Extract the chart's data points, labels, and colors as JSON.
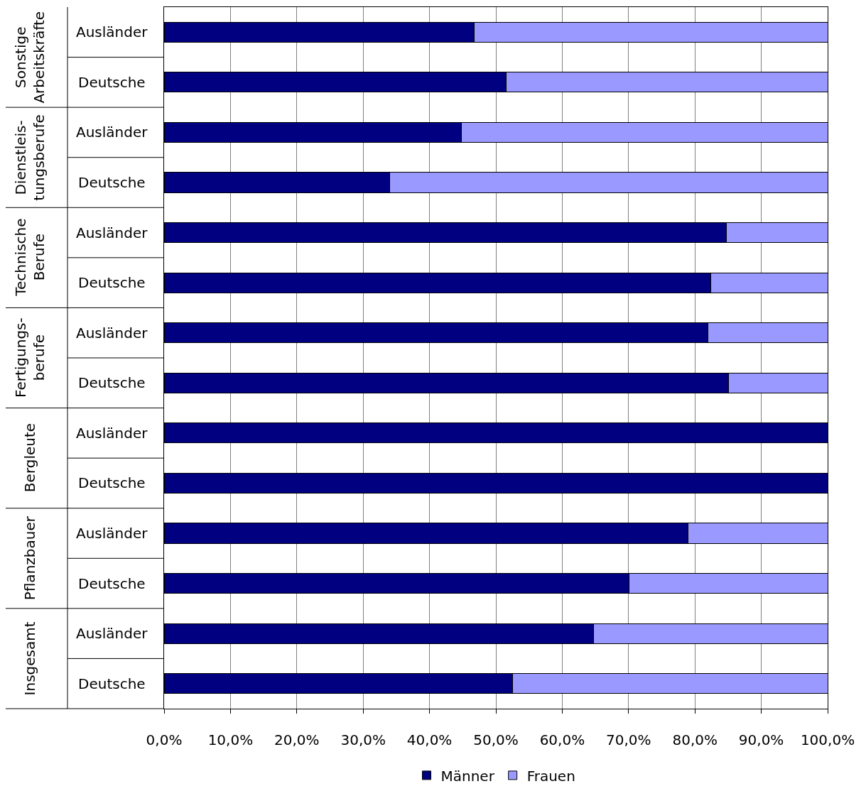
{
  "chart_data": {
    "type": "bar",
    "orientation": "horizontal",
    "stacked": true,
    "categories": [
      "Ausländer",
      "Deutsche",
      "Ausländer",
      "Deutsche",
      "Ausländer",
      "Deutsche",
      "Ausländer",
      "Deutsche",
      "Ausländer",
      "Deutsche",
      "Ausländer",
      "Deutsche",
      "Ausländer",
      "Deutsche"
    ],
    "series": [
      {
        "name": "Männer",
        "color": "#000080",
        "values": [
          46.7,
          51.5,
          44.8,
          34.0,
          84.7,
          82.4,
          82.0,
          85.1,
          100,
          100,
          79.0,
          70.1,
          64.7,
          52.5
        ]
      },
      {
        "name": "Frauen",
        "color": "#9999ff",
        "values": [
          53.3,
          48.5,
          55.2,
          66.0,
          15.3,
          17.6,
          18.0,
          14.9,
          null,
          null,
          21.0,
          29.9,
          35.3,
          47.5
        ]
      }
    ],
    "annotations": [
      "Sonstige\nArbeitskräfte",
      "Dienstleis-\ntungsberufe",
      "Technische\nBerufe",
      "Fertigungs-\nberufe",
      "Bergleute",
      "Pflanzbauer",
      "Insgesamt"
    ],
    "xlim": [
      0,
      100
    ],
    "xticks": [
      {
        "value": 0,
        "label": "0,0%"
      },
      {
        "value": 10,
        "label": "10,0%"
      },
      {
        "value": 20,
        "label": "20,0%"
      },
      {
        "value": 30,
        "label": "30,0%"
      },
      {
        "value": 40,
        "label": "40,0%"
      },
      {
        "value": 50,
        "label": "50,0%"
      },
      {
        "value": 60,
        "label": "60,0%"
      },
      {
        "value": 70,
        "label": "70,0%"
      },
      {
        "value": 80,
        "label": "80,0%"
      },
      {
        "value": 90,
        "label": "90,0%"
      },
      {
        "value": 100,
        "label": "100,0%"
      }
    ],
    "grid": "x",
    "legend": "bottom"
  }
}
